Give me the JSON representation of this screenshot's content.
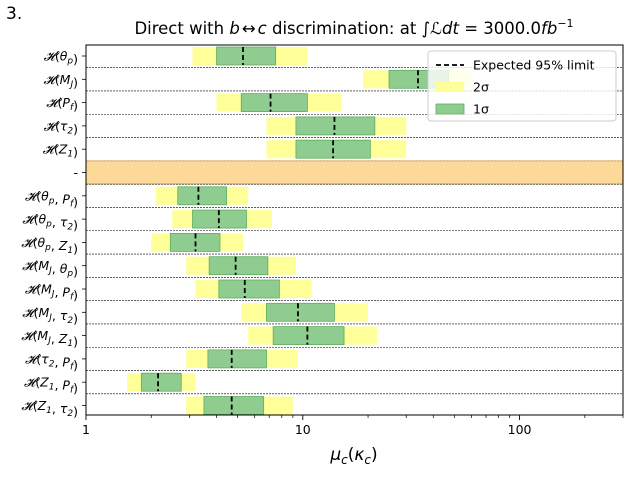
{
  "panel_label": "3.",
  "chart_data": {
    "type": "limit-bands",
    "title": "Direct with b↔c discrimination: at ∫ℒdt = 3000.0fb⁻¹",
    "title_prefix": "Direct with ",
    "title_b": "b",
    "title_arrow": "↔",
    "title_c": "c",
    "title_mid": " discrimination: at ",
    "title_integral": "∫ℒdt",
    "title_equals": " = 3000.0",
    "title_unit": "fb",
    "title_exp": "−1",
    "xlabel": "μ_c(κ_c)",
    "xlabel_mu": "μ",
    "xlabel_sub": "c",
    "xlabel_kappa": "κ",
    "xscale": "log",
    "xlim": [
      1,
      300
    ],
    "xticks": [
      {
        "value": 1,
        "label": "1"
      },
      {
        "value": 10,
        "label": "10"
      },
      {
        "value": 100,
        "label": "100"
      }
    ],
    "legend": {
      "position": "top-right",
      "entries": [
        {
          "label": "Expected 95% limit",
          "style": "dashed",
          "color": "#000000"
        },
        {
          "label": "2σ",
          "style": "band",
          "color": "#ffff99"
        },
        {
          "label": "1σ",
          "style": "band",
          "color": "#8fcc8f"
        }
      ]
    },
    "colors": {
      "two_sigma": "#ffff99",
      "one_sigma": "#8fcc8f",
      "one_sigma_edge": "#5fae5f",
      "separator": "#fdd999",
      "separator_edge": "#e8a33d"
    },
    "rows": [
      {
        "label": "𝓗(θp)",
        "fn": "𝓗",
        "args": [
          [
            "θ",
            "p"
          ]
        ],
        "median": 5.3,
        "one_sigma": [
          4.0,
          7.5
        ],
        "two_sigma": [
          3.1,
          10.5
        ]
      },
      {
        "label": "𝓗(MJ)",
        "fn": "𝓗",
        "args": [
          [
            "M",
            "J"
          ]
        ],
        "median": 34.0,
        "one_sigma": [
          25.0,
          47.0
        ],
        "two_sigma": [
          19.0,
          60.0
        ]
      },
      {
        "label": "𝓗(Pf)",
        "fn": "𝓗",
        "args": [
          [
            "P",
            "f"
          ]
        ],
        "median": 7.1,
        "one_sigma": [
          5.2,
          10.5
        ],
        "two_sigma": [
          4.0,
          15.0
        ]
      },
      {
        "label": "𝓗(τ2)",
        "fn": "𝓗",
        "args": [
          [
            "τ",
            "2"
          ]
        ],
        "median": 14.0,
        "one_sigma": [
          9.3,
          21.5
        ],
        "two_sigma": [
          6.8,
          30.0
        ]
      },
      {
        "label": "𝓗(Z1)",
        "fn": "𝓗",
        "args": [
          [
            "Z",
            "1"
          ]
        ],
        "median": 13.8,
        "one_sigma": [
          9.3,
          20.5
        ],
        "two_sigma": [
          6.8,
          30.0
        ]
      },
      {
        "label": "-",
        "separator": true
      },
      {
        "label": "𝓗(θp, Pf)",
        "fn": "𝓗",
        "args": [
          [
            "θ",
            "p"
          ],
          [
            "P",
            "f"
          ]
        ],
        "median": 3.3,
        "one_sigma": [
          2.65,
          4.45
        ],
        "two_sigma": [
          2.1,
          5.6
        ]
      },
      {
        "label": "𝓗(θp, τ2)",
        "fn": "𝓗",
        "args": [
          [
            "θ",
            "p"
          ],
          [
            "τ",
            "2"
          ]
        ],
        "median": 4.1,
        "one_sigma": [
          3.1,
          5.5
        ],
        "two_sigma": [
          2.5,
          7.2
        ]
      },
      {
        "label": "𝓗(θp, Z1)",
        "fn": "𝓗",
        "args": [
          [
            "θ",
            "p"
          ],
          [
            "Z",
            "1"
          ]
        ],
        "median": 3.2,
        "one_sigma": [
          2.45,
          4.15
        ],
        "two_sigma": [
          2.0,
          5.3
        ]
      },
      {
        "label": "𝓗(MJ, θp)",
        "fn": "𝓗",
        "args": [
          [
            "M",
            "J"
          ],
          [
            "θ",
            "p"
          ]
        ],
        "median": 4.9,
        "one_sigma": [
          3.7,
          6.9
        ],
        "two_sigma": [
          2.9,
          9.3
        ]
      },
      {
        "label": "𝓗(MJ, Pf)",
        "fn": "𝓗",
        "args": [
          [
            "M",
            "J"
          ],
          [
            "P",
            "f"
          ]
        ],
        "median": 5.4,
        "one_sigma": [
          4.1,
          7.8
        ],
        "two_sigma": [
          3.2,
          11.0
        ]
      },
      {
        "label": "𝓗(MJ, τ2)",
        "fn": "𝓗",
        "args": [
          [
            "M",
            "J"
          ],
          [
            "τ",
            "2"
          ]
        ],
        "median": 9.5,
        "one_sigma": [
          6.8,
          14.0
        ],
        "two_sigma": [
          5.2,
          20.0
        ]
      },
      {
        "label": "𝓗(MJ, Z1)",
        "fn": "𝓗",
        "args": [
          [
            "M",
            "J"
          ],
          [
            "Z",
            "1"
          ]
        ],
        "median": 10.5,
        "one_sigma": [
          7.3,
          15.5
        ],
        "two_sigma": [
          5.6,
          22.0
        ]
      },
      {
        "label": "𝓗(τ2, Pf)",
        "fn": "𝓗",
        "args": [
          [
            "τ",
            "2"
          ],
          [
            "P",
            "f"
          ]
        ],
        "median": 4.7,
        "one_sigma": [
          3.65,
          6.8
        ],
        "two_sigma": [
          2.9,
          9.5
        ]
      },
      {
        "label": "𝓗(Z1, Pf)",
        "fn": "𝓗",
        "args": [
          [
            "Z",
            "1"
          ],
          [
            "P",
            "f"
          ]
        ],
        "median": 2.15,
        "one_sigma": [
          1.8,
          2.75
        ],
        "two_sigma": [
          1.55,
          3.2
        ]
      },
      {
        "label": "𝓗(Z1, τ2)",
        "fn": "𝓗",
        "args": [
          [
            "Z",
            "1"
          ],
          [
            "τ",
            "2"
          ]
        ],
        "median": 4.7,
        "one_sigma": [
          3.5,
          6.6
        ],
        "two_sigma": [
          2.9,
          9.0
        ]
      }
    ]
  }
}
